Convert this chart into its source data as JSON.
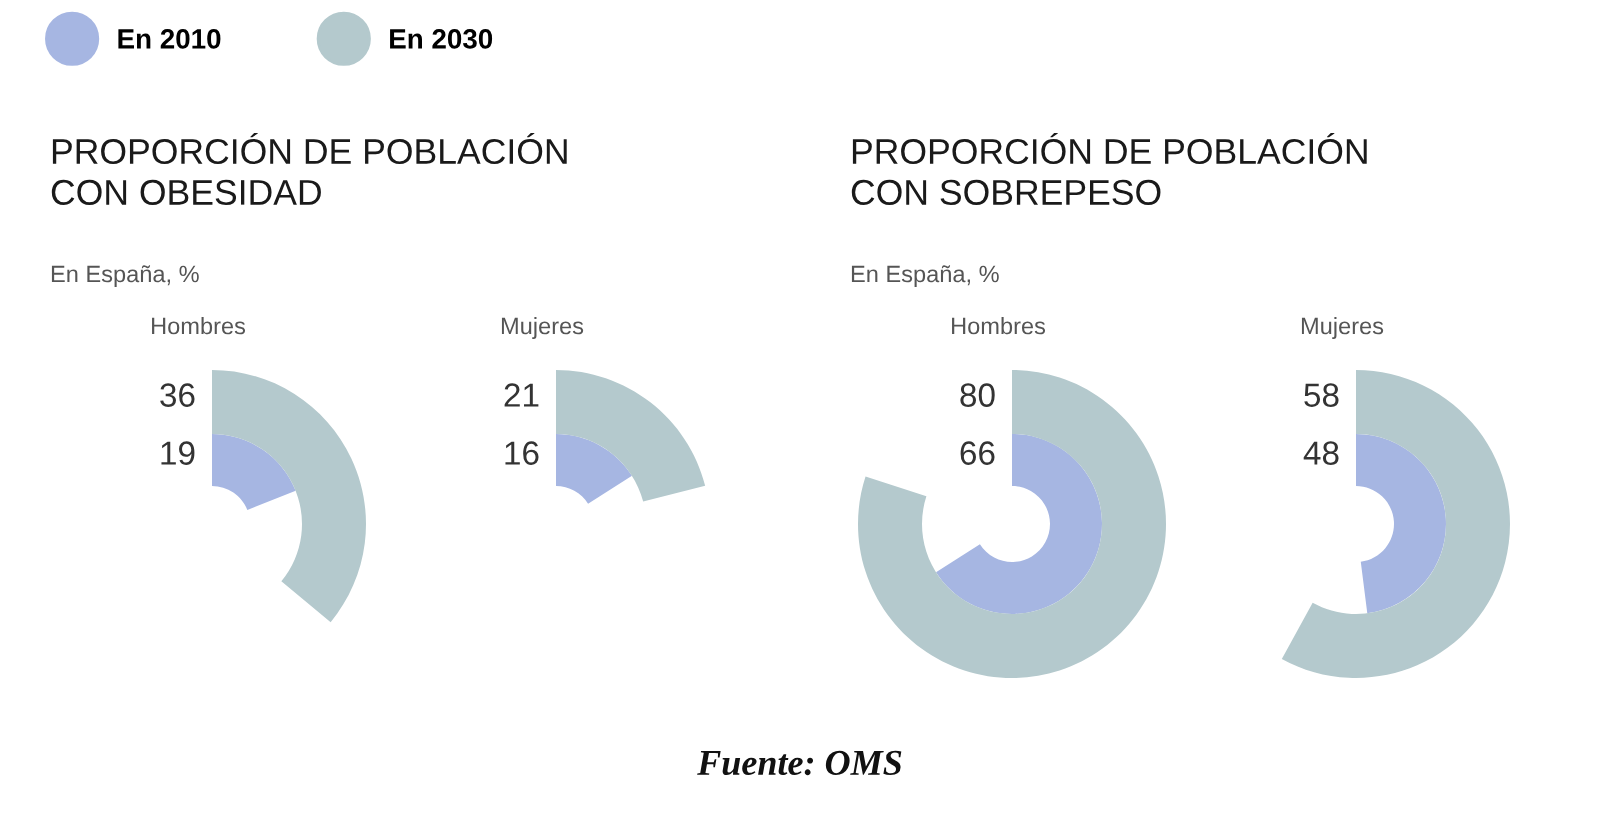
{
  "chart_data": [
    {
      "type": "other",
      "title": "PROPORCIÓN DE POBLACIÓN\nCON OBESIDAD",
      "subtitle": "En España, %",
      "categories": [
        "Hombres",
        "Mujeres"
      ],
      "series": [
        {
          "name": "En 2010",
          "color": "#a6b6e2",
          "values": [
            19,
            16
          ]
        },
        {
          "name": "En 2030",
          "color": "#b4c9cd",
          "values": [
            36,
            21
          ]
        }
      ],
      "data_labels": true,
      "legend": "top left",
      "annotations": [
        "Fuente: OMS"
      ]
    },
    {
      "type": "other",
      "title": "PROPORCIÓN DE POBLACIÓN\nCON SOBREPESO",
      "subtitle": "En España, %",
      "categories": [
        "Hombres",
        "Mujeres"
      ],
      "series": [
        {
          "color": "#a6b6e2",
          "values": [
            66,
            48
          ]
        },
        {
          "color": "#b4c9cd",
          "values": [
            80,
            58
          ]
        }
      ],
      "data_labels": true
    }
  ]
}
